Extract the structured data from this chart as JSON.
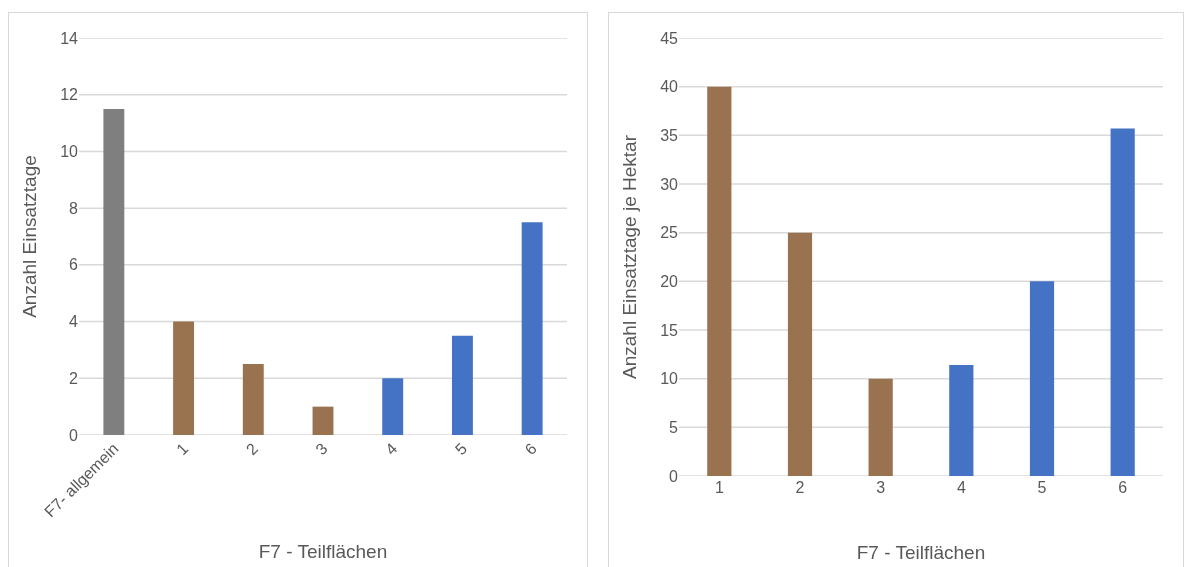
{
  "chart_data": [
    {
      "type": "bar",
      "categories": [
        "F7- allgemein",
        "1",
        "2",
        "3",
        "4",
        "5",
        "6"
      ],
      "values": [
        11.5,
        4,
        2.5,
        1,
        2,
        3.5,
        7.5
      ],
      "colors": [
        "#7f7f7f",
        "#997250",
        "#997250",
        "#997250",
        "#4472c4",
        "#4472c4",
        "#4472c4"
      ],
      "xlabel": "F7 - Teilflächen",
      "ylabel": "Anzahl Einsatztage",
      "ylim": [
        0,
        14
      ],
      "yticks": [
        0,
        2,
        4,
        6,
        8,
        10,
        12,
        14
      ],
      "grid": "y"
    },
    {
      "type": "bar",
      "categories": [
        "1",
        "2",
        "3",
        "4",
        "5",
        "6"
      ],
      "values": [
        40,
        25,
        10,
        11.4,
        20,
        35.7
      ],
      "colors": [
        "#997250",
        "#997250",
        "#997250",
        "#4472c4",
        "#4472c4",
        "#4472c4"
      ],
      "xlabel": "F7 - Teilflächen",
      "ylabel": "Anzahl Einsatztage je Hektar",
      "ylim": [
        0,
        45
      ],
      "yticks": [
        0,
        5,
        10,
        15,
        20,
        25,
        30,
        35,
        40,
        45
      ],
      "grid": "y"
    }
  ]
}
